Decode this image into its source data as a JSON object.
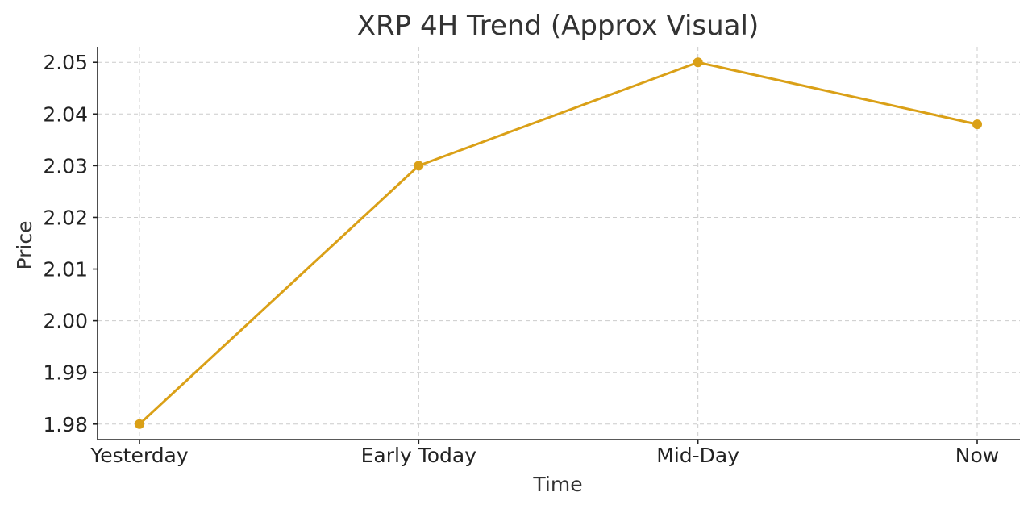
{
  "chart_data": {
    "type": "line",
    "title": "XRP 4H Trend (Approx Visual)",
    "xlabel": "Time",
    "ylabel": "Price",
    "categories": [
      "Yesterday",
      "Early Today",
      "Mid-Day",
      "Now"
    ],
    "series": [
      {
        "values": [
          1.98,
          2.03,
          2.05,
          2.038
        ],
        "color": "#DAA017",
        "marker": "circle"
      }
    ],
    "yticks": [
      "1.98",
      "1.99",
      "2.00",
      "2.01",
      "2.02",
      "2.03",
      "2.04",
      "2.05"
    ],
    "ylim": [
      1.977,
      2.053
    ],
    "grid": true,
    "legend": "none"
  }
}
